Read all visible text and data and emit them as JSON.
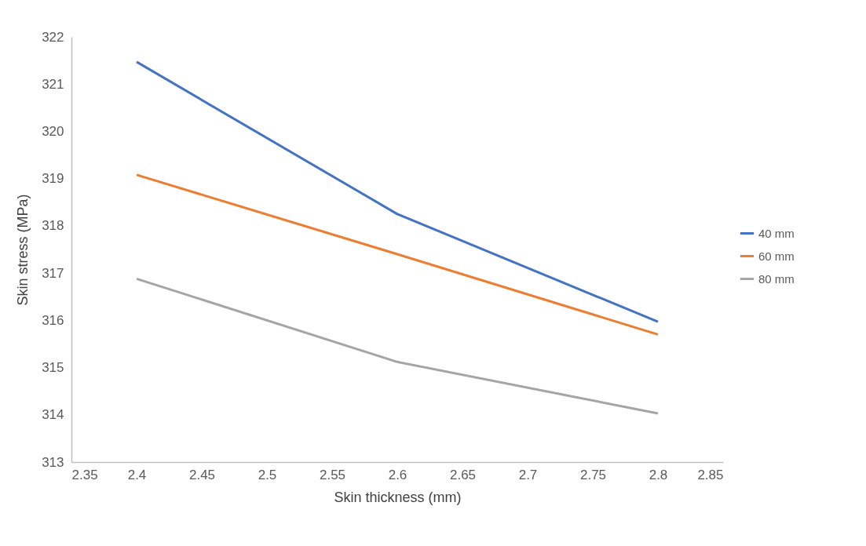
{
  "chart_data": {
    "type": "line",
    "xlabel": "Skin thickness (mm)",
    "ylabel": "Skin stress (MPa)",
    "x": [
      2.4,
      2.6,
      2.8
    ],
    "series": [
      {
        "name": "40 mm",
        "color": "#4472c4",
        "values": [
          321.47,
          318.25,
          315.97
        ]
      },
      {
        "name": "60 mm",
        "color": "#ed7d31",
        "values": [
          319.08,
          317.4,
          315.7
        ]
      },
      {
        "name": "80 mm",
        "color": "#a5a5a5",
        "values": [
          316.88,
          315.12,
          314.03
        ]
      }
    ],
    "xlim": [
      2.35,
      2.85
    ],
    "xticks": [
      2.35,
      2.4,
      2.45,
      2.5,
      2.55,
      2.6,
      2.65,
      2.7,
      2.75,
      2.8,
      2.85
    ],
    "ylim": [
      313,
      322
    ],
    "yticks": [
      313,
      314,
      315,
      316,
      317,
      318,
      319,
      320,
      321,
      322
    ],
    "grid": false,
    "legend": "right",
    "marker": "none",
    "line_style": "solid"
  }
}
